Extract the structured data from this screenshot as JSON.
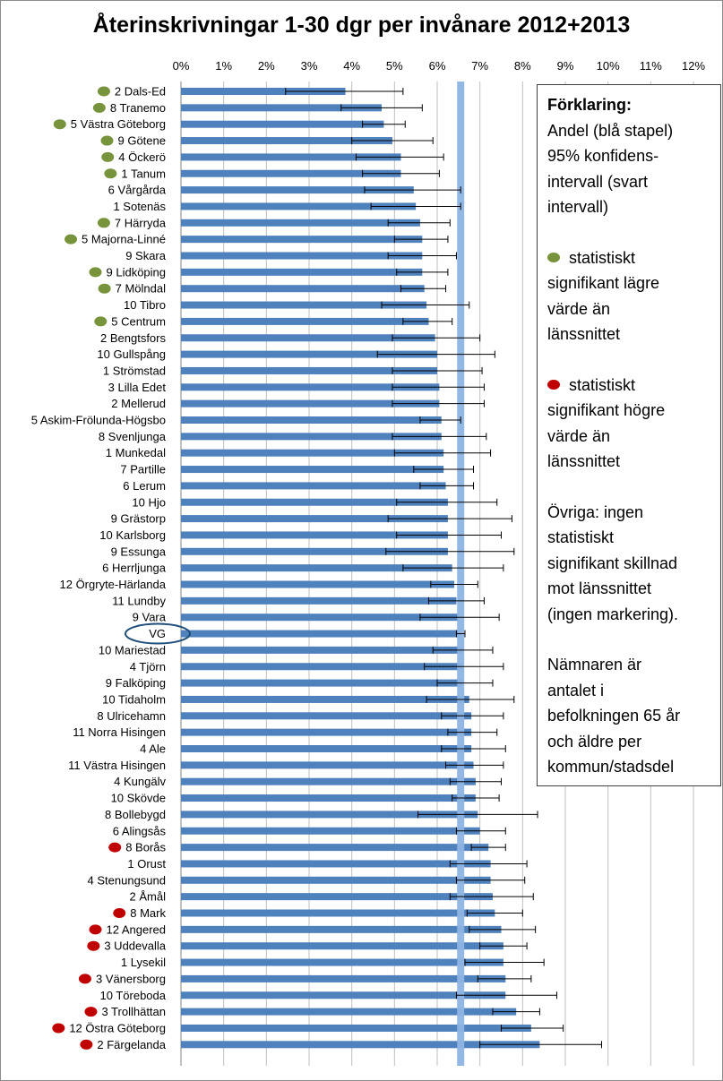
{
  "chart_data": {
    "type": "bar",
    "orientation": "horizontal",
    "title": "Återinskrivningar  1-30 dgr per invånare 2012+2013",
    "xlim": [
      0,
      12
    ],
    "x_ticks": [
      "0%",
      "1%",
      "2%",
      "3%",
      "4%",
      "5%",
      "6%",
      "7%",
      "8%",
      "9%",
      "10%",
      "11%",
      "12%"
    ],
    "grid": "vertical",
    "reference_line": {
      "category": "VG",
      "value": 6.55
    },
    "colors": {
      "bar": "#4f81bd",
      "reference": "#8eb4e3",
      "lower": "#77933c",
      "higher": "#c00000",
      "ci": "#000000",
      "grid": "#bfbfbf"
    },
    "categories": [
      {
        "label": "2 Dals-Ed",
        "value": 3.85,
        "ci": [
          2.45,
          5.2
        ],
        "marker": "lower"
      },
      {
        "label": "8 Tranemo",
        "value": 4.7,
        "ci": [
          3.75,
          5.65
        ],
        "marker": "lower"
      },
      {
        "label": "5 Västra Göteborg",
        "value": 4.75,
        "ci": [
          4.25,
          5.25
        ],
        "marker": "lower"
      },
      {
        "label": "9 Götene",
        "value": 4.95,
        "ci": [
          4.0,
          5.9
        ],
        "marker": "lower"
      },
      {
        "label": "4 Öckerö",
        "value": 5.15,
        "ci": [
          4.1,
          6.15
        ],
        "marker": "lower"
      },
      {
        "label": "1 Tanum",
        "value": 5.15,
        "ci": [
          4.25,
          6.05
        ],
        "marker": "lower"
      },
      {
        "label": "6 Vårgårda",
        "value": 5.45,
        "ci": [
          4.3,
          6.55
        ],
        "marker": "none"
      },
      {
        "label": "1 Sotenäs",
        "value": 5.5,
        "ci": [
          4.45,
          6.55
        ],
        "marker": "none"
      },
      {
        "label": "7 Härryda",
        "value": 5.6,
        "ci": [
          4.85,
          6.3
        ],
        "marker": "lower"
      },
      {
        "label": "5 Majorna-Linné",
        "value": 5.65,
        "ci": [
          5.0,
          6.25
        ],
        "marker": "lower"
      },
      {
        "label": "9 Skara",
        "value": 5.65,
        "ci": [
          4.85,
          6.45
        ],
        "marker": "none"
      },
      {
        "label": "9 Lidköping",
        "value": 5.65,
        "ci": [
          5.05,
          6.25
        ],
        "marker": "lower"
      },
      {
        "label": "7 Mölndal",
        "value": 5.7,
        "ci": [
          5.15,
          6.2
        ],
        "marker": "lower"
      },
      {
        "label": "10 Tibro",
        "value": 5.75,
        "ci": [
          4.7,
          6.75
        ],
        "marker": "none"
      },
      {
        "label": "5 Centrum",
        "value": 5.8,
        "ci": [
          5.2,
          6.35
        ],
        "marker": "lower"
      },
      {
        "label": "2 Bengtsfors",
        "value": 5.95,
        "ci": [
          4.95,
          7.0
        ],
        "marker": "none"
      },
      {
        "label": "10 Gullspång",
        "value": 6.0,
        "ci": [
          4.6,
          7.35
        ],
        "marker": "none"
      },
      {
        "label": "1 Strömstad",
        "value": 6.0,
        "ci": [
          4.95,
          7.05
        ],
        "marker": "none"
      },
      {
        "label": "3 Lilla Edet",
        "value": 6.05,
        "ci": [
          4.95,
          7.1
        ],
        "marker": "none"
      },
      {
        "label": "2 Mellerud",
        "value": 6.05,
        "ci": [
          4.95,
          7.1
        ],
        "marker": "none"
      },
      {
        "label": "5 Askim-Frölunda-Högsbo",
        "value": 6.1,
        "ci": [
          5.6,
          6.55
        ],
        "marker": "none"
      },
      {
        "label": "8 Svenljunga",
        "value": 6.1,
        "ci": [
          4.95,
          7.15
        ],
        "marker": "none"
      },
      {
        "label": "1 Munkedal",
        "value": 6.15,
        "ci": [
          5.0,
          7.25
        ],
        "marker": "none"
      },
      {
        "label": "7 Partille",
        "value": 6.15,
        "ci": [
          5.45,
          6.85
        ],
        "marker": "none"
      },
      {
        "label": "6 Lerum",
        "value": 6.2,
        "ci": [
          5.6,
          6.85
        ],
        "marker": "none"
      },
      {
        "label": "10 Hjo",
        "value": 6.25,
        "ci": [
          5.05,
          7.4
        ],
        "marker": "none"
      },
      {
        "label": "9 Grästorp",
        "value": 6.25,
        "ci": [
          4.85,
          7.75
        ],
        "marker": "none"
      },
      {
        "label": "10 Karlsborg",
        "value": 6.25,
        "ci": [
          5.05,
          7.5
        ],
        "marker": "none"
      },
      {
        "label": "9 Essunga",
        "value": 6.25,
        "ci": [
          4.8,
          7.8
        ],
        "marker": "none"
      },
      {
        "label": "6 Herrljunga",
        "value": 6.35,
        "ci": [
          5.2,
          7.55
        ],
        "marker": "none"
      },
      {
        "label": "12 Örgryte-Härlanda",
        "value": 6.4,
        "ci": [
          5.85,
          6.95
        ],
        "marker": "none"
      },
      {
        "label": "11 Lundby",
        "value": 6.45,
        "ci": [
          5.8,
          7.1
        ],
        "marker": "none"
      },
      {
        "label": "9 Vara",
        "value": 6.5,
        "ci": [
          5.6,
          7.45
        ],
        "marker": "none"
      },
      {
        "label": "VG",
        "value": 6.55,
        "ci": [
          6.45,
          6.65
        ],
        "marker": "none",
        "highlight": true
      },
      {
        "label": "10 Mariestad",
        "value": 6.6,
        "ci": [
          5.9,
          7.3
        ],
        "marker": "none"
      },
      {
        "label": "4 Tjörn",
        "value": 6.6,
        "ci": [
          5.7,
          7.55
        ],
        "marker": "none"
      },
      {
        "label": "9 Falköping",
        "value": 6.6,
        "ci": [
          6.0,
          7.3
        ],
        "marker": "none"
      },
      {
        "label": "10 Tidaholm",
        "value": 6.75,
        "ci": [
          5.75,
          7.8
        ],
        "marker": "none"
      },
      {
        "label": "8 Ulricehamn",
        "value": 6.8,
        "ci": [
          6.1,
          7.55
        ],
        "marker": "none"
      },
      {
        "label": "11 Norra Hisingen",
        "value": 6.8,
        "ci": [
          6.25,
          7.4
        ],
        "marker": "none"
      },
      {
        "label": "4 Ale",
        "value": 6.8,
        "ci": [
          6.1,
          7.6
        ],
        "marker": "none"
      },
      {
        "label": "11 Västra Hisingen",
        "value": 6.85,
        "ci": [
          6.2,
          7.55
        ],
        "marker": "none"
      },
      {
        "label": "4 Kungälv",
        "value": 6.9,
        "ci": [
          6.3,
          7.5
        ],
        "marker": "none"
      },
      {
        "label": "10 Skövde",
        "value": 6.9,
        "ci": [
          6.35,
          7.45
        ],
        "marker": "none"
      },
      {
        "label": "8 Bollebygd",
        "value": 6.95,
        "ci": [
          5.55,
          8.35
        ],
        "marker": "none"
      },
      {
        "label": "6 Alingsås",
        "value": 7.0,
        "ci": [
          6.45,
          7.6
        ],
        "marker": "none"
      },
      {
        "label": "8 Borås",
        "value": 7.2,
        "ci": [
          6.8,
          7.6
        ],
        "marker": "higher"
      },
      {
        "label": "1 Orust",
        "value": 7.25,
        "ci": [
          6.3,
          8.1
        ],
        "marker": "none"
      },
      {
        "label": "4 Stenungsund",
        "value": 7.25,
        "ci": [
          6.45,
          8.05
        ],
        "marker": "none"
      },
      {
        "label": "2 Åmål",
        "value": 7.3,
        "ci": [
          6.3,
          8.25
        ],
        "marker": "none"
      },
      {
        "label": "8 Mark",
        "value": 7.35,
        "ci": [
          6.7,
          8.0
        ],
        "marker": "higher"
      },
      {
        "label": "12 Angered",
        "value": 7.5,
        "ci": [
          6.75,
          8.3
        ],
        "marker": "higher"
      },
      {
        "label": "3 Uddevalla",
        "value": 7.55,
        "ci": [
          7.0,
          8.1
        ],
        "marker": "higher"
      },
      {
        "label": "1 Lysekil",
        "value": 7.55,
        "ci": [
          6.65,
          8.5
        ],
        "marker": "none"
      },
      {
        "label": "3 Vänersborg",
        "value": 7.6,
        "ci": [
          6.95,
          8.2
        ],
        "marker": "higher"
      },
      {
        "label": "10 Töreboda",
        "value": 7.6,
        "ci": [
          6.45,
          8.8
        ],
        "marker": "none"
      },
      {
        "label": "3 Trollhättan",
        "value": 7.85,
        "ci": [
          7.3,
          8.4
        ],
        "marker": "higher"
      },
      {
        "label": "12 Östra Göteborg",
        "value": 8.2,
        "ci": [
          7.5,
          8.95
        ],
        "marker": "higher"
      },
      {
        "label": "2 Färgelanda",
        "value": 8.4,
        "ci": [
          7.0,
          9.85
        ],
        "marker": "higher"
      }
    ]
  },
  "legend": {
    "title": "Förklaring:",
    "intro": [
      "Andel (blå stapel)",
      "95% konfidens-",
      "intervall (svart",
      "intervall)"
    ],
    "green_text": [
      "statistiskt",
      "signifikant lägre",
      "värde än",
      "länssnittet"
    ],
    "red_text": [
      "statistiskt",
      "signifikant högre",
      "värde än",
      "länssnittet"
    ],
    "other_text": [
      "Övriga: ingen",
      "statistiskt",
      "signifikant skillnad",
      "mot länssnittet",
      "(ingen markering)."
    ],
    "denominator_text": [
      "Nämnaren är",
      "antalet i",
      "befolkningen 65 år",
      "och äldre per",
      "kommun/stadsdel"
    ]
  }
}
